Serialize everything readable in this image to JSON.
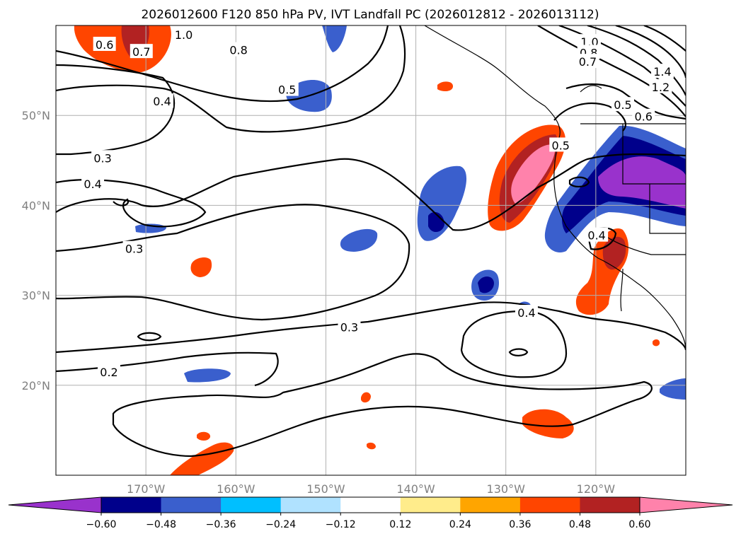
{
  "chart_data": {
    "type": "heatmap",
    "title": "2026012600 F120 850 hPa PV, IVT Landfall PC (2026012812 - 2026013112)",
    "x_axis": {
      "range_deg": [
        -180,
        -110
      ],
      "tick_values": [
        -170,
        -160,
        -150,
        -140,
        -130,
        -120
      ],
      "tick_labels": [
        "170°W",
        "160°W",
        "150°W",
        "140°W",
        "130°W",
        "120°W"
      ]
    },
    "y_axis": {
      "range_deg": [
        10,
        60
      ],
      "tick_values": [
        20,
        30,
        40,
        50
      ],
      "tick_labels": [
        "20°N",
        "30°N",
        "40°N",
        "50°N"
      ]
    },
    "grid": true,
    "colorbar": {
      "orientation": "horizontal",
      "extend": "both",
      "levels": [
        -0.6,
        -0.48,
        -0.36,
        -0.24,
        -0.12,
        0.12,
        0.24,
        0.36,
        0.48,
        0.6
      ],
      "tick_labels": [
        "−0.60",
        "−0.48",
        "−0.36",
        "−0.24",
        "−0.12",
        "0.12",
        "0.24",
        "0.36",
        "0.48",
        "0.60"
      ],
      "colors": [
        "#9932CC",
        "#00008B",
        "#3A5FCD",
        "#00BFFF",
        "#B0E2FF",
        "#FFFFFF",
        "#FFEC8B",
        "#FFA500",
        "#FF4500",
        "#B22222",
        "#FF82AB"
      ]
    },
    "contour_labels": [
      {
        "text": "1.0",
        "lon": -165.8,
        "lat": 58.9
      },
      {
        "text": "0.6",
        "lon": -174.6,
        "lat": 57.8
      },
      {
        "text": "0.7",
        "lon": -170.5,
        "lat": 57.0
      },
      {
        "text": "0.8",
        "lon": -159.7,
        "lat": 57.2
      },
      {
        "text": "0.5",
        "lon": -154.3,
        "lat": 52.8
      },
      {
        "text": "0.4",
        "lon": -168.2,
        "lat": 51.5
      },
      {
        "text": "0.3",
        "lon": -174.8,
        "lat": 45.2
      },
      {
        "text": "0.4",
        "lon": -175.9,
        "lat": 42.3
      },
      {
        "text": "0.3",
        "lon": -171.3,
        "lat": 35.1
      },
      {
        "text": "0.3",
        "lon": -147.4,
        "lat": 26.4
      },
      {
        "text": "0.4",
        "lon": -127.7,
        "lat": 28.0
      },
      {
        "text": "0.2",
        "lon": -174.1,
        "lat": 21.4
      },
      {
        "text": "1.0",
        "lon": -120.7,
        "lat": 58.1
      },
      {
        "text": "0.8",
        "lon": -120.8,
        "lat": 56.9
      },
      {
        "text": "0.7",
        "lon": -120.9,
        "lat": 55.9
      },
      {
        "text": "1.4",
        "lon": -112.6,
        "lat": 54.8
      },
      {
        "text": "1.2",
        "lon": -112.8,
        "lat": 53.1
      },
      {
        "text": "0.5",
        "lon": -117.0,
        "lat": 51.1
      },
      {
        "text": "0.6",
        "lon": -114.7,
        "lat": 49.8
      },
      {
        "text": "0.5",
        "lon": -123.9,
        "lat": 46.6
      },
      {
        "text": "0.4",
        "lon": -119.9,
        "lat": 36.6
      }
    ]
  }
}
